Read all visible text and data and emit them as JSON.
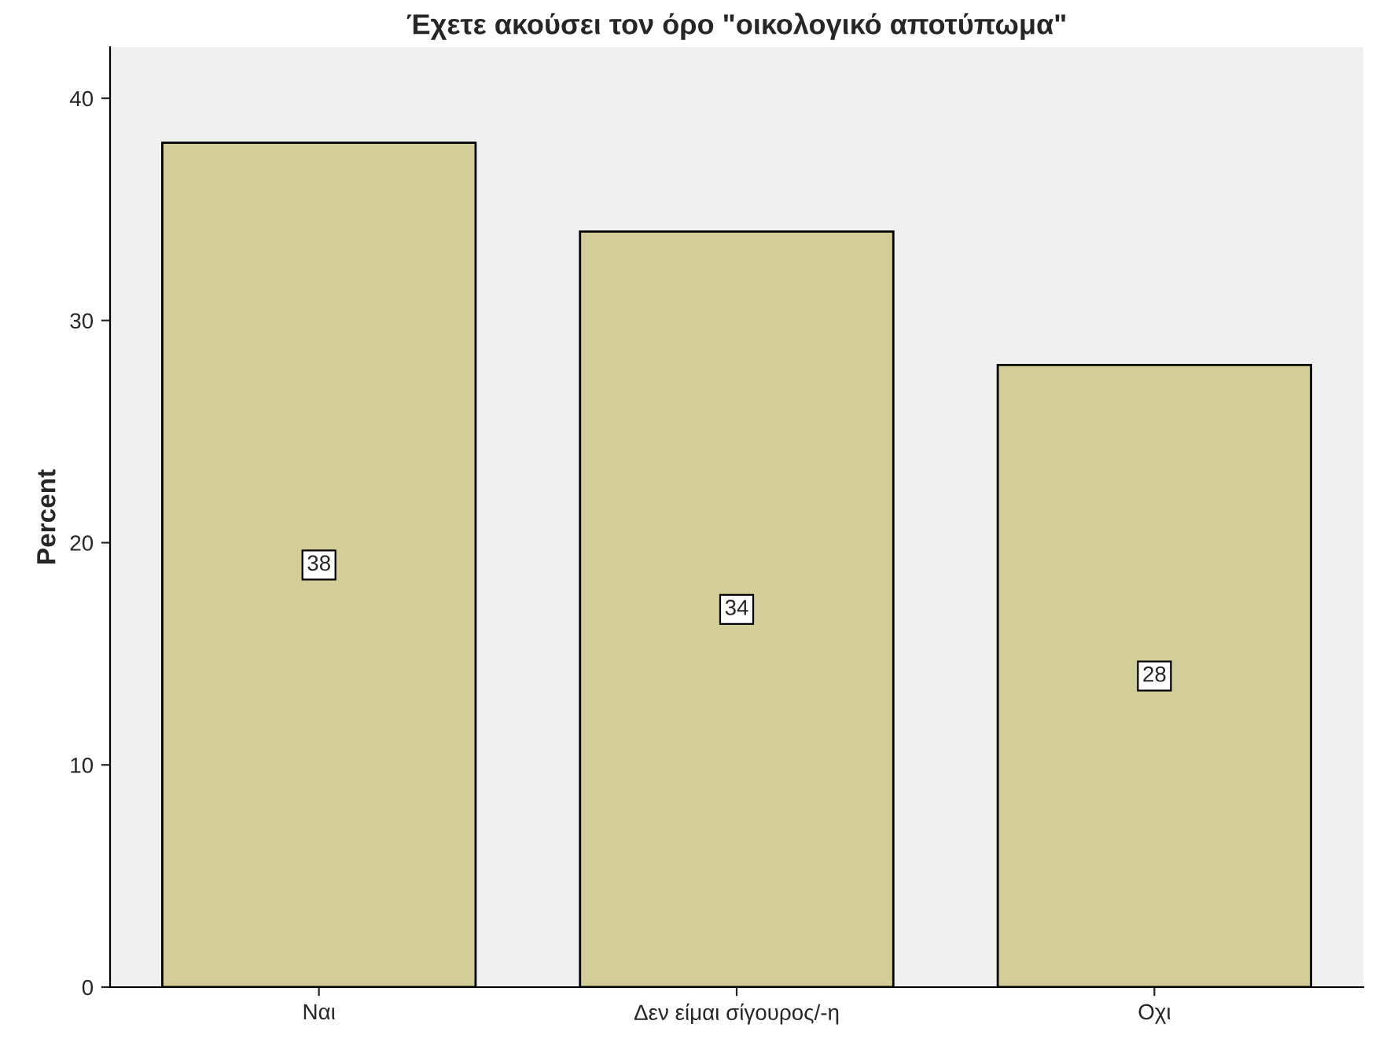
{
  "chart_data": {
    "type": "bar",
    "title": "Έχετε ακούσει τον όρο \"οικολογικό αποτύπωμα\"",
    "ylabel": "Percent",
    "categories": [
      "Ναι",
      "Δεν είμαι σίγουρος/-η",
      "Οχι"
    ],
    "values": [
      38,
      34,
      28
    ],
    "color": "#d3ce97",
    "ylim": [
      0,
      42.3
    ],
    "yticks": [
      0,
      10,
      20,
      30,
      40
    ],
    "grid": false,
    "data_labels": true
  }
}
